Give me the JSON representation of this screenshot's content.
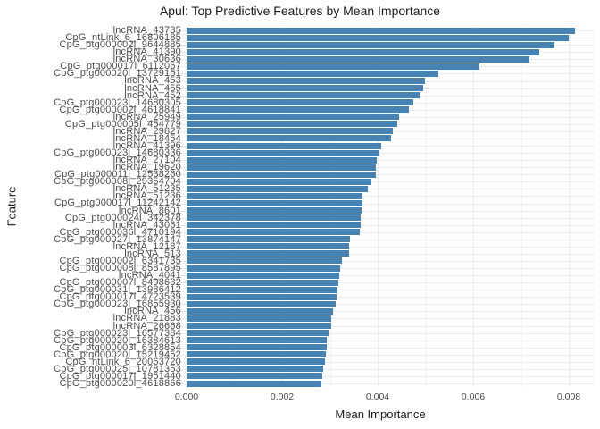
{
  "chart_data": {
    "type": "bar",
    "orientation": "horizontal",
    "title": "Apul: Top Predictive Features by Mean Importance",
    "xlabel": "Mean Importance",
    "ylabel": "Feature",
    "bar_color": "#4682b4",
    "grid": true,
    "legend": false,
    "xlim": [
      0,
      0.0086
    ],
    "x_ticks": [
      0,
      0.002,
      0.004,
      0.006,
      0.008
    ],
    "x_tick_labels": [
      "0.000",
      "0.002",
      "0.004",
      "0.006",
      "0.008"
    ],
    "x_minor_ticks": [
      0.001,
      0.003,
      0.005,
      0.007
    ],
    "categories": [
      "lncRNA_43735",
      "CpG_ntLink_6_16806185",
      "CpG_ptg000002l_9644885",
      "lncRNA_41390",
      "lncRNA_30636",
      "CpG_ptg000017l_6112067",
      "CpG_ptg000020l_13729151",
      "lncRNA_453",
      "lncRNA_455",
      "lncRNA_452",
      "CpG_ptg000023l_14680305",
      "CpG_ptg000002l_4618841",
      "lncRNA_25949",
      "CpG_ptg000005l_454779",
      "lncRNA_29827",
      "lncRNA_18454",
      "lncRNA_41396",
      "CpG_ptg000023l_14680336",
      "lncRNA_27104",
      "lncRNA_19620",
      "CpG_ptg000011l_12538260",
      "CpG_ptg000008l_29354704",
      "lncRNA_51235",
      "lncRNA_51236",
      "CpG_ptg000017l_11242142",
      "lncRNA_8601",
      "CpG_ptg000024l_342378",
      "lncRNA_43061",
      "CpG_ptg000036l_4710194",
      "CpG_ptg000027l_13874147",
      "lncRNA_12187",
      "lncRNA_513",
      "CpG_ptg000002l_6341735",
      "CpG_ptg000008l_8587895",
      "lncRNA_4041",
      "CpG_ptg000007l_8498632",
      "CpG_ptg000031l_13986412",
      "CpG_ptg000017l_4723539",
      "CpG_ptg000023l_16855930",
      "lncRNA_456",
      "lncRNA_21883",
      "lncRNA_26668",
      "CpG_ptg000023l_16577384",
      "CpG_ptg000020l_16384613",
      "CpG_ptg000003l_6328854",
      "CpG_ptg000020l_15219452",
      "CpG_ntLink_6_20063720",
      "CpG_ptg000025l_10781353",
      "CpG_ptg000017l_1951440",
      "CpG_ptg000020l_4618866"
    ],
    "values": [
      0.00813,
      0.008,
      0.0077,
      0.00738,
      0.00717,
      0.00613,
      0.00527,
      0.00499,
      0.00495,
      0.00488,
      0.00474,
      0.00466,
      0.00445,
      0.00441,
      0.00432,
      0.00428,
      0.00408,
      0.00404,
      0.00398,
      0.00397,
      0.00396,
      0.00387,
      0.0038,
      0.00369,
      0.00368,
      0.00366,
      0.00365,
      0.00364,
      0.00362,
      0.00342,
      0.00341,
      0.0034,
      0.00325,
      0.00321,
      0.0032,
      0.00318,
      0.00315,
      0.00314,
      0.00312,
      0.00307,
      0.00303,
      0.00302,
      0.00297,
      0.00294,
      0.00293,
      0.00292,
      0.0029,
      0.00286,
      0.00284,
      0.00282
    ]
  },
  "colors": {
    "bar": "#4682b4",
    "grid_major": "#ebebeb",
    "grid_minor": "#f4f4f4",
    "tick_text": "#4d4d4d",
    "title_text": "#1a1a1a",
    "background": "#ffffff"
  }
}
